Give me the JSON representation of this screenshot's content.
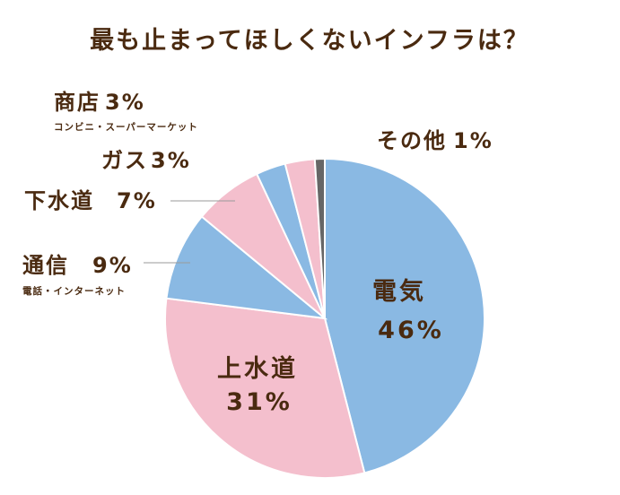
{
  "chart_data": {
    "type": "pie",
    "title": "最も止まってほしくないインフラは？",
    "start_angle_deg": 0,
    "direction": "clockwise",
    "slices": [
      {
        "name": "電気",
        "value": 46,
        "label": "46%",
        "color": "#8ab9e3"
      },
      {
        "name": "上水道",
        "value": 31,
        "label": "31%",
        "color": "#f4bfcd"
      },
      {
        "name": "通信",
        "value": 9,
        "label": "9%",
        "sublabel": "電話・インターネット",
        "color": "#8ab9e3"
      },
      {
        "name": "下水道",
        "value": 7,
        "label": "7%",
        "color": "#f4bfcd"
      },
      {
        "name": "ガス",
        "value": 3,
        "label": "3%",
        "color": "#8ab9e3"
      },
      {
        "name": "商店",
        "value": 3,
        "label": "3%",
        "sublabel": "コンビニ・スーパーマーケット",
        "color": "#f4bfcd"
      },
      {
        "name": "その他",
        "value": 1,
        "label": "1%",
        "color": "#666666"
      }
    ]
  }
}
